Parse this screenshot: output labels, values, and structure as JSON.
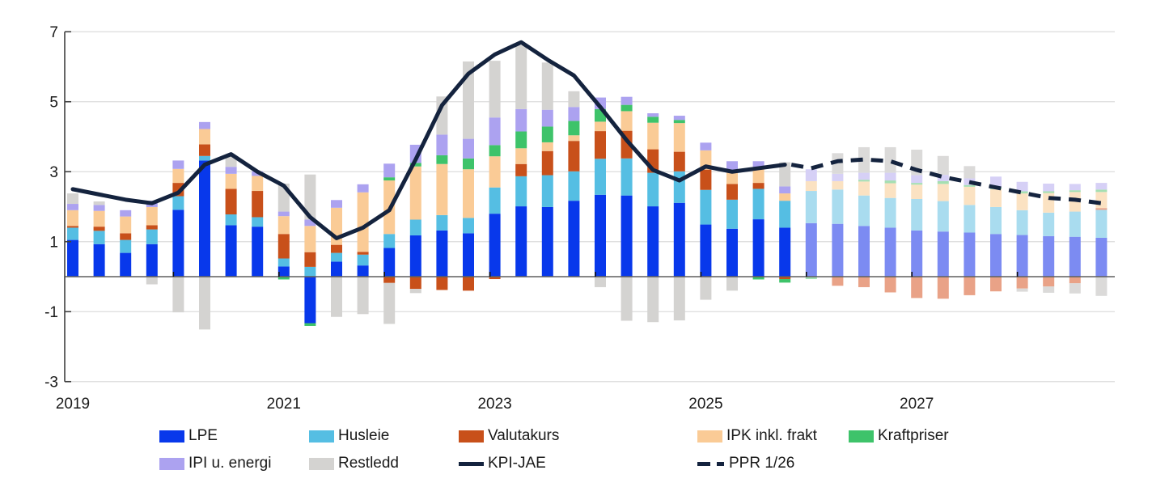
{
  "chart_data": {
    "type": "bar",
    "subtype": "stacked-bar-with-lines",
    "title": "",
    "ylabel": "",
    "xlabel": "",
    "ylim": [
      -3,
      7
    ],
    "y_ticks": [
      7,
      5,
      3,
      1,
      -1,
      -3
    ],
    "grid": "horizontal",
    "zero_line": true,
    "projection_start_index": 28,
    "categories": [
      "2019 K1",
      "2019 K2",
      "2019 K3",
      "2019 K4",
      "2020 K1",
      "2020 K2",
      "2020 K3",
      "2020 K4",
      "2021 K1",
      "2021 K2",
      "2021 K3",
      "2021 K4",
      "2022 K1",
      "2022 K2",
      "2022 K3",
      "2022 K4",
      "2023 K1",
      "2023 K2",
      "2023 K3",
      "2023 K4",
      "2024 K1",
      "2024 K2",
      "2024 K3",
      "2024 K4",
      "2025 K1",
      "2025 K2",
      "2025 K3",
      "2025 K4",
      "2026 K1",
      "2026 K2",
      "2026 K3",
      "2026 K4",
      "2027 K1",
      "2027 K2",
      "2027 K3",
      "2027 K4",
      "2028 K1",
      "2028 K2",
      "2028 K3",
      "2028 K4"
    ],
    "x_year_labels": [
      {
        "label": "2019",
        "index": 0
      },
      {
        "label": "2021",
        "index": 8
      },
      {
        "label": "2023",
        "index": 16
      },
      {
        "label": "2025",
        "index": 24
      },
      {
        "label": "2027",
        "index": 32
      }
    ],
    "x_year_tick_indices": [
      4,
      8,
      12,
      16,
      20,
      24,
      28,
      32,
      36
    ],
    "series": [
      {
        "name": "LPE",
        "color": "#0838EB",
        "faded_color": "#7C8BF2",
        "values": [
          1.05,
          0.93,
          0.68,
          0.93,
          1.91,
          3.32,
          1.47,
          1.43,
          0.29,
          -1.33,
          0.43,
          0.32,
          0.82,
          1.18,
          1.32,
          1.24,
          1.8,
          2.01,
          1.99,
          2.17,
          2.34,
          2.32,
          2.01,
          2.11,
          1.49,
          1.37,
          1.64,
          1.4,
          1.53,
          1.51,
          1.45,
          1.4,
          1.32,
          1.29,
          1.26,
          1.22,
          1.19,
          1.16,
          1.14,
          1.11
        ]
      },
      {
        "name": "Husleie",
        "color": "#55BEE3",
        "faded_color": "#A9DCEF",
        "values": [
          0.35,
          0.38,
          0.37,
          0.42,
          0.39,
          0.13,
          0.31,
          0.27,
          0.23,
          0.28,
          0.25,
          0.31,
          0.4,
          0.45,
          0.44,
          0.44,
          0.75,
          0.86,
          0.91,
          0.84,
          1.03,
          1.06,
          0.96,
          0.9,
          0.99,
          0.83,
          0.87,
          0.77,
          0.92,
          0.98,
          0.87,
          0.85,
          0.9,
          0.87,
          0.79,
          0.77,
          0.71,
          0.67,
          0.72,
          0.8
        ]
      },
      {
        "name": "Valutakurs",
        "color": "#C8501A",
        "faded_color": "#E9A287",
        "values": [
          0.05,
          0.12,
          0.19,
          0.12,
          0.38,
          0.33,
          0.73,
          0.75,
          0.7,
          0.42,
          0.23,
          0.08,
          -0.18,
          -0.35,
          -0.38,
          -0.4,
          -0.07,
          0.35,
          0.69,
          0.87,
          0.79,
          0.79,
          0.67,
          0.56,
          0.58,
          0.45,
          0.17,
          -0.07,
          0,
          -0.26,
          -0.3,
          -0.45,
          -0.61,
          -0.63,
          -0.53,
          -0.42,
          -0.34,
          -0.28,
          -0.19,
          0.05
        ]
      },
      {
        "name": "IPK inkl. frakt",
        "color": "#FACB96",
        "faded_color": "#FBE2C2",
        "values": [
          0.45,
          0.45,
          0.48,
          0.52,
          0.4,
          0.44,
          0.43,
          0.43,
          0.51,
          0.75,
          1.06,
          1.7,
          1.53,
          1.52,
          1.46,
          1.39,
          0.89,
          0.45,
          0.25,
          0.16,
          0.27,
          0.56,
          0.76,
          0.82,
          0.55,
          0.34,
          0.39,
          0.21,
          0.28,
          0.24,
          0.4,
          0.42,
          0.41,
          0.49,
          0.52,
          0.51,
          0.48,
          0.56,
          0.56,
          0.46
        ]
      },
      {
        "name": "Kraftpriser",
        "color": "#3EC36A",
        "faded_color": "#A5DFB2",
        "values": [
          0,
          0,
          0,
          0,
          0,
          0,
          0,
          0,
          -0.08,
          -0.08,
          0,
          0,
          0.09,
          0.1,
          0.25,
          0.31,
          0.32,
          0.48,
          0.45,
          0.41,
          0.36,
          0.18,
          0.17,
          0.09,
          0,
          0,
          -0.08,
          -0.1,
          -0.07,
          0,
          0.05,
          0.08,
          0.05,
          0.08,
          0.05,
          0.05,
          0.06,
          0.05,
          0.05,
          0.07
        ]
      },
      {
        "name": "IPI u. energi",
        "color": "#ACA2F0",
        "faded_color": "#D6D0F6",
        "values": [
          0.18,
          0.17,
          0.18,
          0.18,
          0.24,
          0.2,
          0.2,
          0.13,
          0.13,
          0.18,
          0.22,
          0.23,
          0.39,
          0.52,
          0.59,
          0.56,
          0.79,
          0.64,
          0.48,
          0.4,
          0.33,
          0.23,
          0.1,
          0.12,
          0.22,
          0.31,
          0.23,
          0.2,
          0.34,
          0.21,
          0.2,
          0.22,
          0.22,
          0.18,
          0.19,
          0.31,
          0.27,
          0.22,
          0.18,
          0.19
        ]
      },
      {
        "name": "Restledd",
        "color": "#D4D3D1",
        "faded_color": "#DBDAD9",
        "values": [
          0.3,
          0.1,
          0,
          -0.22,
          -1.02,
          -1.51,
          0.3,
          0,
          0.8,
          1.29,
          -1.15,
          -1.07,
          -1.17,
          -0.12,
          1.09,
          2.21,
          1.62,
          1.83,
          1.35,
          0.45,
          -0.3,
          -1.26,
          -1.3,
          -1.25,
          -0.66,
          -0.4,
          0,
          0.69,
          0,
          0.59,
          0.73,
          0.73,
          0.73,
          0.54,
          0.35,
          0,
          -0.09,
          -0.18,
          -0.29,
          -0.55
        ]
      }
    ],
    "line_series": [
      {
        "name": "KPI-JAE",
        "style": "solid",
        "color": "#14233E",
        "start_index": 0,
        "values": [
          2.5,
          2.35,
          2.2,
          2.1,
          2.4,
          3.2,
          3.5,
          3.0,
          2.6,
          1.7,
          1.1,
          1.4,
          1.9,
          3.35,
          4.9,
          5.8,
          6.35,
          6.7,
          6.2,
          5.75,
          4.85,
          3.9,
          3.05,
          2.75,
          3.15,
          3.0,
          3.1,
          3.2
        ]
      },
      {
        "name": "PPR 1/26",
        "style": "dashed",
        "color": "#14233E",
        "start_index": 28,
        "values": [
          3.1,
          3.3,
          3.35,
          3.3,
          3.05,
          2.85,
          2.7,
          2.55,
          2.4,
          2.25,
          2.2,
          2.1
        ]
      }
    ]
  },
  "legend": {
    "rows": [
      [
        {
          "label": "LPE",
          "swatch": "rect",
          "series": "LPE"
        },
        {
          "label": "Husleie",
          "swatch": "rect",
          "series": "Husleie"
        },
        {
          "label": "Valutakurs",
          "swatch": "rect",
          "series": "Valutakurs"
        },
        {
          "label": "IPK inkl. frakt",
          "swatch": "rect",
          "series": "IPK inkl. frakt"
        },
        {
          "label": "Kraftpriser",
          "swatch": "rect",
          "series": "Kraftpriser"
        }
      ],
      [
        {
          "label": "IPI u. energi",
          "swatch": "rect",
          "series": "IPI u. energi"
        },
        {
          "label": "Restledd",
          "swatch": "rect",
          "series": "Restledd"
        },
        {
          "label": "KPI-JAE",
          "swatch": "line-solid",
          "color": "#14233E"
        },
        {
          "label": "PPR 1/26",
          "swatch": "line-dashed",
          "color": "#14233E"
        }
      ]
    ]
  },
  "colors": {
    "background": "#ffffff",
    "gridline": "#DCDCDC",
    "zero_line": "#5F5F5F",
    "axis_spine": "#404040",
    "tick_label": "#1a1a1a",
    "line_navy": "#14233E"
  }
}
